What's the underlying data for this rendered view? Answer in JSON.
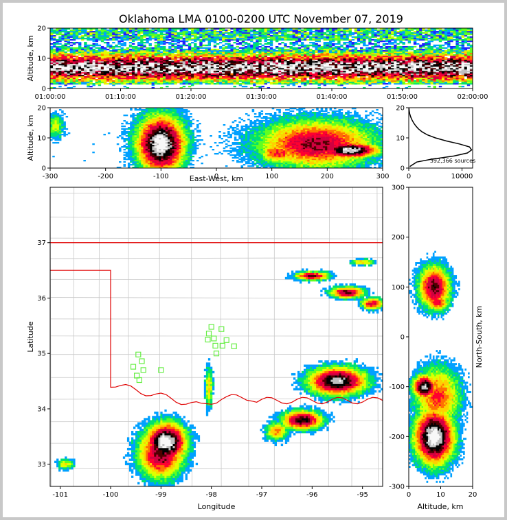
{
  "title": "Oklahoma LMA 0100-0200 UTC November 07, 2019",
  "colors": {
    "density": [
      "#2020ff",
      "#00a0ff",
      "#00e070",
      "#60ff20",
      "#e0ff00",
      "#ffd000",
      "#ff7000",
      "#ff0030",
      "#d00040",
      "#500000",
      "#000000",
      "#c0c0c0",
      "#f8f8f8"
    ],
    "state_border": "#e00000",
    "county_lines": "#c8c8c8",
    "stations": "#66ee44"
  },
  "chart_data": [
    {
      "id": "time-height",
      "type": "heatmap",
      "ylabel": "Altitude, km",
      "xlabel": "",
      "xticks": [
        "01:00:00",
        "01:10:00",
        "01:20:00",
        "01:30:00",
        "01:40:00",
        "01:50:00",
        "02:00:00"
      ],
      "xlim_minutes": [
        0,
        60
      ],
      "ylim": [
        0,
        20
      ],
      "yticks": [
        0,
        10,
        20
      ]
    },
    {
      "id": "ew-altitude",
      "type": "heatmap",
      "xlabel": "East-West, km",
      "ylabel": "Altitude, km",
      "xlim": [
        -300,
        300
      ],
      "xticks": [
        -300,
        -200,
        -100,
        0,
        100,
        200,
        300
      ],
      "ylim": [
        0,
        20
      ],
      "yticks": [
        0,
        10,
        20
      ]
    },
    {
      "id": "altitude-histogram",
      "type": "line",
      "xlim": [
        0,
        12000
      ],
      "xticks": [
        0,
        10000
      ],
      "ylim": [
        0,
        20
      ],
      "yticks": [
        0,
        10,
        20
      ],
      "annotation": "392,366 sources",
      "profile": [
        [
          0.5,
          200
        ],
        [
          2,
          1500
        ],
        [
          3,
          4500
        ],
        [
          4,
          8500
        ],
        [
          5,
          11000
        ],
        [
          6,
          11800
        ],
        [
          7,
          11400
        ],
        [
          8,
          9500
        ],
        [
          9,
          7000
        ],
        [
          10,
          5000
        ],
        [
          11,
          3500
        ],
        [
          12,
          2500
        ],
        [
          13,
          1800
        ],
        [
          14,
          1300
        ],
        [
          15,
          900
        ],
        [
          16,
          600
        ],
        [
          17,
          350
        ],
        [
          18,
          180
        ],
        [
          19,
          80
        ],
        [
          20,
          30
        ]
      ]
    },
    {
      "id": "plan-view",
      "type": "heatmap",
      "xlabel": "Longitude",
      "ylabel": "Latitude",
      "xlim": [
        -101.2,
        -94.6
      ],
      "ylim": [
        32.6,
        38.0
      ],
      "xticks": [
        -101,
        -100,
        -99,
        -98,
        -97,
        -96,
        -95
      ],
      "yticks": [
        33,
        34,
        35,
        36,
        37
      ],
      "stations": [
        [
          -98.0,
          35.48
        ],
        [
          -98.05,
          35.36
        ],
        [
          -97.95,
          35.27
        ],
        [
          -98.07,
          35.25
        ],
        [
          -97.8,
          35.44
        ],
        [
          -97.7,
          35.24
        ],
        [
          -97.78,
          35.14
        ],
        [
          -97.55,
          35.13
        ],
        [
          -97.92,
          35.14
        ],
        [
          -97.9,
          35.0
        ],
        [
          -99.45,
          34.98
        ],
        [
          -99.38,
          34.86
        ],
        [
          -99.55,
          34.76
        ],
        [
          -99.35,
          34.7
        ],
        [
          -99.0,
          34.7
        ],
        [
          -99.48,
          34.6
        ],
        [
          -99.43,
          34.52
        ]
      ]
    },
    {
      "id": "altitude-ns",
      "type": "heatmap",
      "xlabel": "Altitude, km",
      "ylabel": "North-South, km",
      "xlim": [
        0,
        20
      ],
      "xticks": [
        0,
        10,
        20
      ],
      "ylim": [
        -300,
        300
      ],
      "yticks": [
        -300,
        -200,
        -100,
        0,
        100,
        200,
        300
      ]
    }
  ]
}
